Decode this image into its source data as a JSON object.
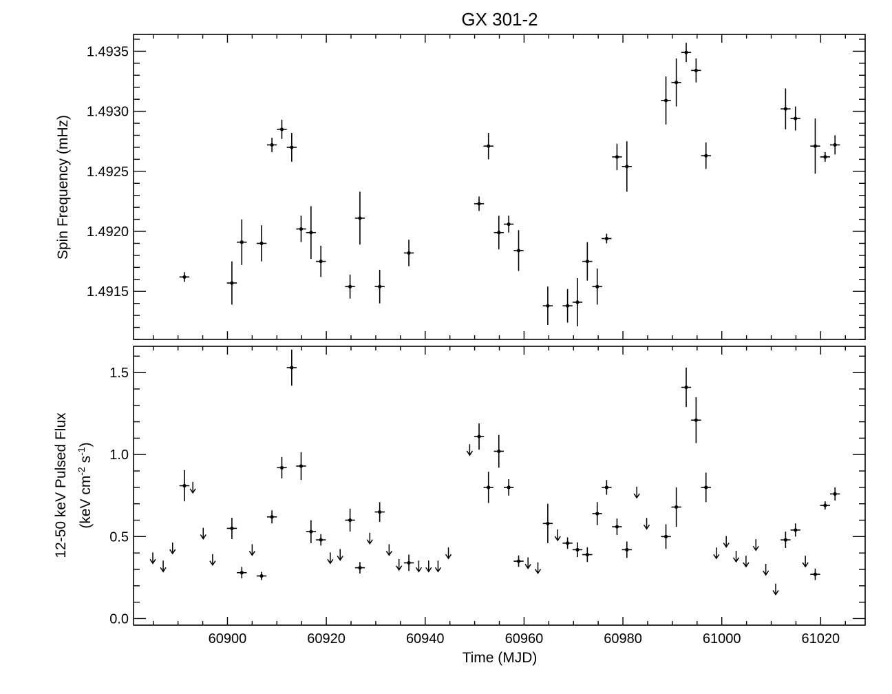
{
  "chart_data": [
    {
      "type": "scatter",
      "title": "GX 301-2",
      "ylabel": "Spin Frequency (mHz)",
      "xlabel": "",
      "xlim": [
        60881,
        61029
      ],
      "ylim": [
        1.4911,
        1.49364
      ],
      "yticks": [
        1.4915,
        1.492,
        1.4925,
        1.493,
        1.4935
      ],
      "ytick_labels": [
        "1.4915",
        "1.4920",
        "1.4925",
        "1.4930",
        "1.4935"
      ],
      "xticks": [
        60900,
        60920,
        60940,
        60960,
        60980,
        61000,
        61020
      ],
      "show_xtick_labels": false,
      "points": [
        {
          "x": 60891.3,
          "y": 1.49162,
          "xerr": 1.0,
          "yerr": 4e-05
        },
        {
          "x": 60900.9,
          "y": 1.49157,
          "xerr": 1.0,
          "yerr": 0.00018
        },
        {
          "x": 60902.9,
          "y": 1.49191,
          "xerr": 1.0,
          "yerr": 0.00019
        },
        {
          "x": 60906.9,
          "y": 1.4919,
          "xerr": 1.0,
          "yerr": 0.00015
        },
        {
          "x": 60909.0,
          "y": 1.49272,
          "xerr": 1.0,
          "yerr": 6e-05
        },
        {
          "x": 60911.0,
          "y": 1.49285,
          "xerr": 1.0,
          "yerr": 8e-05
        },
        {
          "x": 60913.0,
          "y": 1.4927,
          "xerr": 1.0,
          "yerr": 0.00012
        },
        {
          "x": 60914.9,
          "y": 1.49202,
          "xerr": 1.0,
          "yerr": 0.00011
        },
        {
          "x": 60916.9,
          "y": 1.49199,
          "xerr": 1.0,
          "yerr": 0.00022
        },
        {
          "x": 60918.9,
          "y": 1.49175,
          "xerr": 1.0,
          "yerr": 0.00013
        },
        {
          "x": 60924.8,
          "y": 1.49154,
          "xerr": 1.0,
          "yerr": 0.0001
        },
        {
          "x": 60926.8,
          "y": 1.49211,
          "xerr": 1.0,
          "yerr": 0.00022
        },
        {
          "x": 60930.8,
          "y": 1.49154,
          "xerr": 1.0,
          "yerr": 0.00014
        },
        {
          "x": 60936.7,
          "y": 1.49182,
          "xerr": 1.0,
          "yerr": 0.00011
        },
        {
          "x": 60950.9,
          "y": 1.49223,
          "xerr": 1.0,
          "yerr": 6e-05
        },
        {
          "x": 60952.8,
          "y": 1.49271,
          "xerr": 1.0,
          "yerr": 0.00011
        },
        {
          "x": 60954.9,
          "y": 1.49199,
          "xerr": 1.0,
          "yerr": 0.00014
        },
        {
          "x": 60956.9,
          "y": 1.49206,
          "xerr": 1.0,
          "yerr": 7e-05
        },
        {
          "x": 60958.9,
          "y": 1.49184,
          "xerr": 1.0,
          "yerr": 0.00017
        },
        {
          "x": 60964.8,
          "y": 1.49138,
          "xerr": 1.0,
          "yerr": 0.00016
        },
        {
          "x": 60968.8,
          "y": 1.49138,
          "xerr": 1.0,
          "yerr": 0.00014
        },
        {
          "x": 60970.8,
          "y": 1.49141,
          "xerr": 1.0,
          "yerr": 0.0002
        },
        {
          "x": 60972.8,
          "y": 1.49175,
          "xerr": 1.0,
          "yerr": 0.00016
        },
        {
          "x": 60974.8,
          "y": 1.49154,
          "xerr": 1.0,
          "yerr": 0.00015
        },
        {
          "x": 60976.7,
          "y": 1.49194,
          "xerr": 1.0,
          "yerr": 4e-05
        },
        {
          "x": 60978.8,
          "y": 1.49262,
          "xerr": 1.0,
          "yerr": 0.00011
        },
        {
          "x": 60980.8,
          "y": 1.49254,
          "xerr": 1.0,
          "yerr": 0.00021
        },
        {
          "x": 60988.7,
          "y": 1.49309,
          "xerr": 1.0,
          "yerr": 0.0002
        },
        {
          "x": 60990.8,
          "y": 1.49324,
          "xerr": 1.0,
          "yerr": 0.0002
        },
        {
          "x": 60992.8,
          "y": 1.49349,
          "xerr": 1.0,
          "yerr": 8e-05
        },
        {
          "x": 60994.8,
          "y": 1.49334,
          "xerr": 1.0,
          "yerr": 0.0001
        },
        {
          "x": 60996.8,
          "y": 1.49263,
          "xerr": 1.0,
          "yerr": 0.00011
        },
        {
          "x": 61012.9,
          "y": 1.49302,
          "xerr": 1.0,
          "yerr": 0.00017
        },
        {
          "x": 61014.9,
          "y": 1.49294,
          "xerr": 1.0,
          "yerr": 0.0001
        },
        {
          "x": 61018.9,
          "y": 1.49271,
          "xerr": 1.0,
          "yerr": 0.00023
        },
        {
          "x": 61020.9,
          "y": 1.49262,
          "xerr": 1.0,
          "yerr": 4e-05
        },
        {
          "x": 61022.9,
          "y": 1.49272,
          "xerr": 1.0,
          "yerr": 8e-05
        }
      ]
    },
    {
      "type": "scatter",
      "ylabel_line1": "12-50 keV Pulsed Flux",
      "ylabel_line2_parts": [
        "(keV cm",
        "-2",
        " s",
        "-1",
        ")"
      ],
      "xlabel": "Time (MJD)",
      "xlim": [
        60881,
        61029
      ],
      "ylim": [
        -0.04,
        1.66
      ],
      "yticks": [
        0.0,
        0.5,
        1.0,
        1.5
      ],
      "ytick_labels": [
        "0.0",
        "0.5",
        "1.0",
        "1.5"
      ],
      "xticks": [
        60900,
        60920,
        60940,
        60960,
        60980,
        61000,
        61020
      ],
      "xtick_labels": [
        "60900",
        "60920",
        "60940",
        "60960",
        "60980",
        "61000",
        "61020"
      ],
      "points": [
        {
          "x": 60891.3,
          "y": 0.81,
          "xerr": 1.0,
          "yerr": 0.095
        },
        {
          "x": 60900.9,
          "y": 0.55,
          "xerr": 1.0,
          "yerr": 0.065
        },
        {
          "x": 60902.9,
          "y": 0.28,
          "xerr": 1.0,
          "yerr": 0.035
        },
        {
          "x": 60906.9,
          "y": 0.26,
          "xerr": 1.0,
          "yerr": 0.025
        },
        {
          "x": 60909.0,
          "y": 0.62,
          "xerr": 1.0,
          "yerr": 0.04
        },
        {
          "x": 60911.0,
          "y": 0.92,
          "xerr": 1.0,
          "yerr": 0.065
        },
        {
          "x": 60913.0,
          "y": 1.53,
          "xerr": 1.0,
          "yerr": 0.11
        },
        {
          "x": 60914.9,
          "y": 0.93,
          "xerr": 1.0,
          "yerr": 0.085
        },
        {
          "x": 60916.9,
          "y": 0.53,
          "xerr": 1.0,
          "yerr": 0.07
        },
        {
          "x": 60918.9,
          "y": 0.48,
          "xerr": 1.0,
          "yerr": 0.035
        },
        {
          "x": 60924.8,
          "y": 0.6,
          "xerr": 1.0,
          "yerr": 0.07
        },
        {
          "x": 60926.8,
          "y": 0.31,
          "xerr": 1.0,
          "yerr": 0.035
        },
        {
          "x": 60930.8,
          "y": 0.65,
          "xerr": 1.0,
          "yerr": 0.06
        },
        {
          "x": 60936.7,
          "y": 0.34,
          "xerr": 1.0,
          "yerr": 0.05
        },
        {
          "x": 60950.9,
          "y": 1.11,
          "xerr": 1.0,
          "yerr": 0.08
        },
        {
          "x": 60952.8,
          "y": 0.8,
          "xerr": 1.0,
          "yerr": 0.095
        },
        {
          "x": 60954.9,
          "y": 1.02,
          "xerr": 1.0,
          "yerr": 0.1
        },
        {
          "x": 60956.9,
          "y": 0.8,
          "xerr": 1.0,
          "yerr": 0.05
        },
        {
          "x": 60958.9,
          "y": 0.35,
          "xerr": 1.0,
          "yerr": 0.035
        },
        {
          "x": 60964.8,
          "y": 0.58,
          "xerr": 1.0,
          "yerr": 0.12
        },
        {
          "x": 60968.8,
          "y": 0.46,
          "xerr": 1.0,
          "yerr": 0.035
        },
        {
          "x": 60970.8,
          "y": 0.42,
          "xerr": 1.0,
          "yerr": 0.045
        },
        {
          "x": 60972.8,
          "y": 0.39,
          "xerr": 1.0,
          "yerr": 0.045
        },
        {
          "x": 60974.8,
          "y": 0.64,
          "xerr": 1.0,
          "yerr": 0.07
        },
        {
          "x": 60976.7,
          "y": 0.8,
          "xerr": 1.0,
          "yerr": 0.045
        },
        {
          "x": 60978.8,
          "y": 0.56,
          "xerr": 1.0,
          "yerr": 0.05
        },
        {
          "x": 60980.8,
          "y": 0.42,
          "xerr": 1.0,
          "yerr": 0.05
        },
        {
          "x": 60988.7,
          "y": 0.5,
          "xerr": 1.0,
          "yerr": 0.075
        },
        {
          "x": 60990.8,
          "y": 0.68,
          "xerr": 1.0,
          "yerr": 0.12
        },
        {
          "x": 60992.8,
          "y": 1.41,
          "xerr": 1.0,
          "yerr": 0.12
        },
        {
          "x": 60994.8,
          "y": 1.21,
          "xerr": 1.0,
          "yerr": 0.14
        },
        {
          "x": 60996.8,
          "y": 0.8,
          "xerr": 1.0,
          "yerr": 0.09
        },
        {
          "x": 61012.9,
          "y": 0.48,
          "xerr": 1.0,
          "yerr": 0.05
        },
        {
          "x": 61014.9,
          "y": 0.54,
          "xerr": 1.0,
          "yerr": 0.04
        },
        {
          "x": 61018.9,
          "y": 0.27,
          "xerr": 1.0,
          "yerr": 0.035
        },
        {
          "x": 61020.9,
          "y": 0.69,
          "xerr": 1.0,
          "yerr": 0.025
        },
        {
          "x": 61022.9,
          "y": 0.76,
          "xerr": 1.0,
          "yerr": 0.04
        }
      ],
      "upper_limits": [
        {
          "x": 60884.9,
          "y": 0.37
        },
        {
          "x": 60887.0,
          "y": 0.32
        },
        {
          "x": 60888.9,
          "y": 0.43
        },
        {
          "x": 60893.0,
          "y": 0.8
        },
        {
          "x": 60895.1,
          "y": 0.52
        },
        {
          "x": 60897.0,
          "y": 0.36
        },
        {
          "x": 60905.0,
          "y": 0.42
        },
        {
          "x": 60920.8,
          "y": 0.37
        },
        {
          "x": 60922.8,
          "y": 0.39
        },
        {
          "x": 60928.8,
          "y": 0.49
        },
        {
          "x": 60932.7,
          "y": 0.42
        },
        {
          "x": 60934.7,
          "y": 0.33
        },
        {
          "x": 60938.7,
          "y": 0.32
        },
        {
          "x": 60940.7,
          "y": 0.32
        },
        {
          "x": 60942.6,
          "y": 0.32
        },
        {
          "x": 60944.7,
          "y": 0.4
        },
        {
          "x": 60949.0,
          "y": 1.03
        },
        {
          "x": 60960.8,
          "y": 0.34
        },
        {
          "x": 60962.8,
          "y": 0.31
        },
        {
          "x": 60966.8,
          "y": 0.51
        },
        {
          "x": 60982.8,
          "y": 0.77
        },
        {
          "x": 60984.8,
          "y": 0.58
        },
        {
          "x": 60998.9,
          "y": 0.4
        },
        {
          "x": 61000.9,
          "y": 0.47
        },
        {
          "x": 61002.9,
          "y": 0.38
        },
        {
          "x": 61004.9,
          "y": 0.35
        },
        {
          "x": 61006.9,
          "y": 0.45
        },
        {
          "x": 61008.9,
          "y": 0.3
        },
        {
          "x": 61010.9,
          "y": 0.18
        },
        {
          "x": 61016.9,
          "y": 0.35
        }
      ]
    }
  ]
}
